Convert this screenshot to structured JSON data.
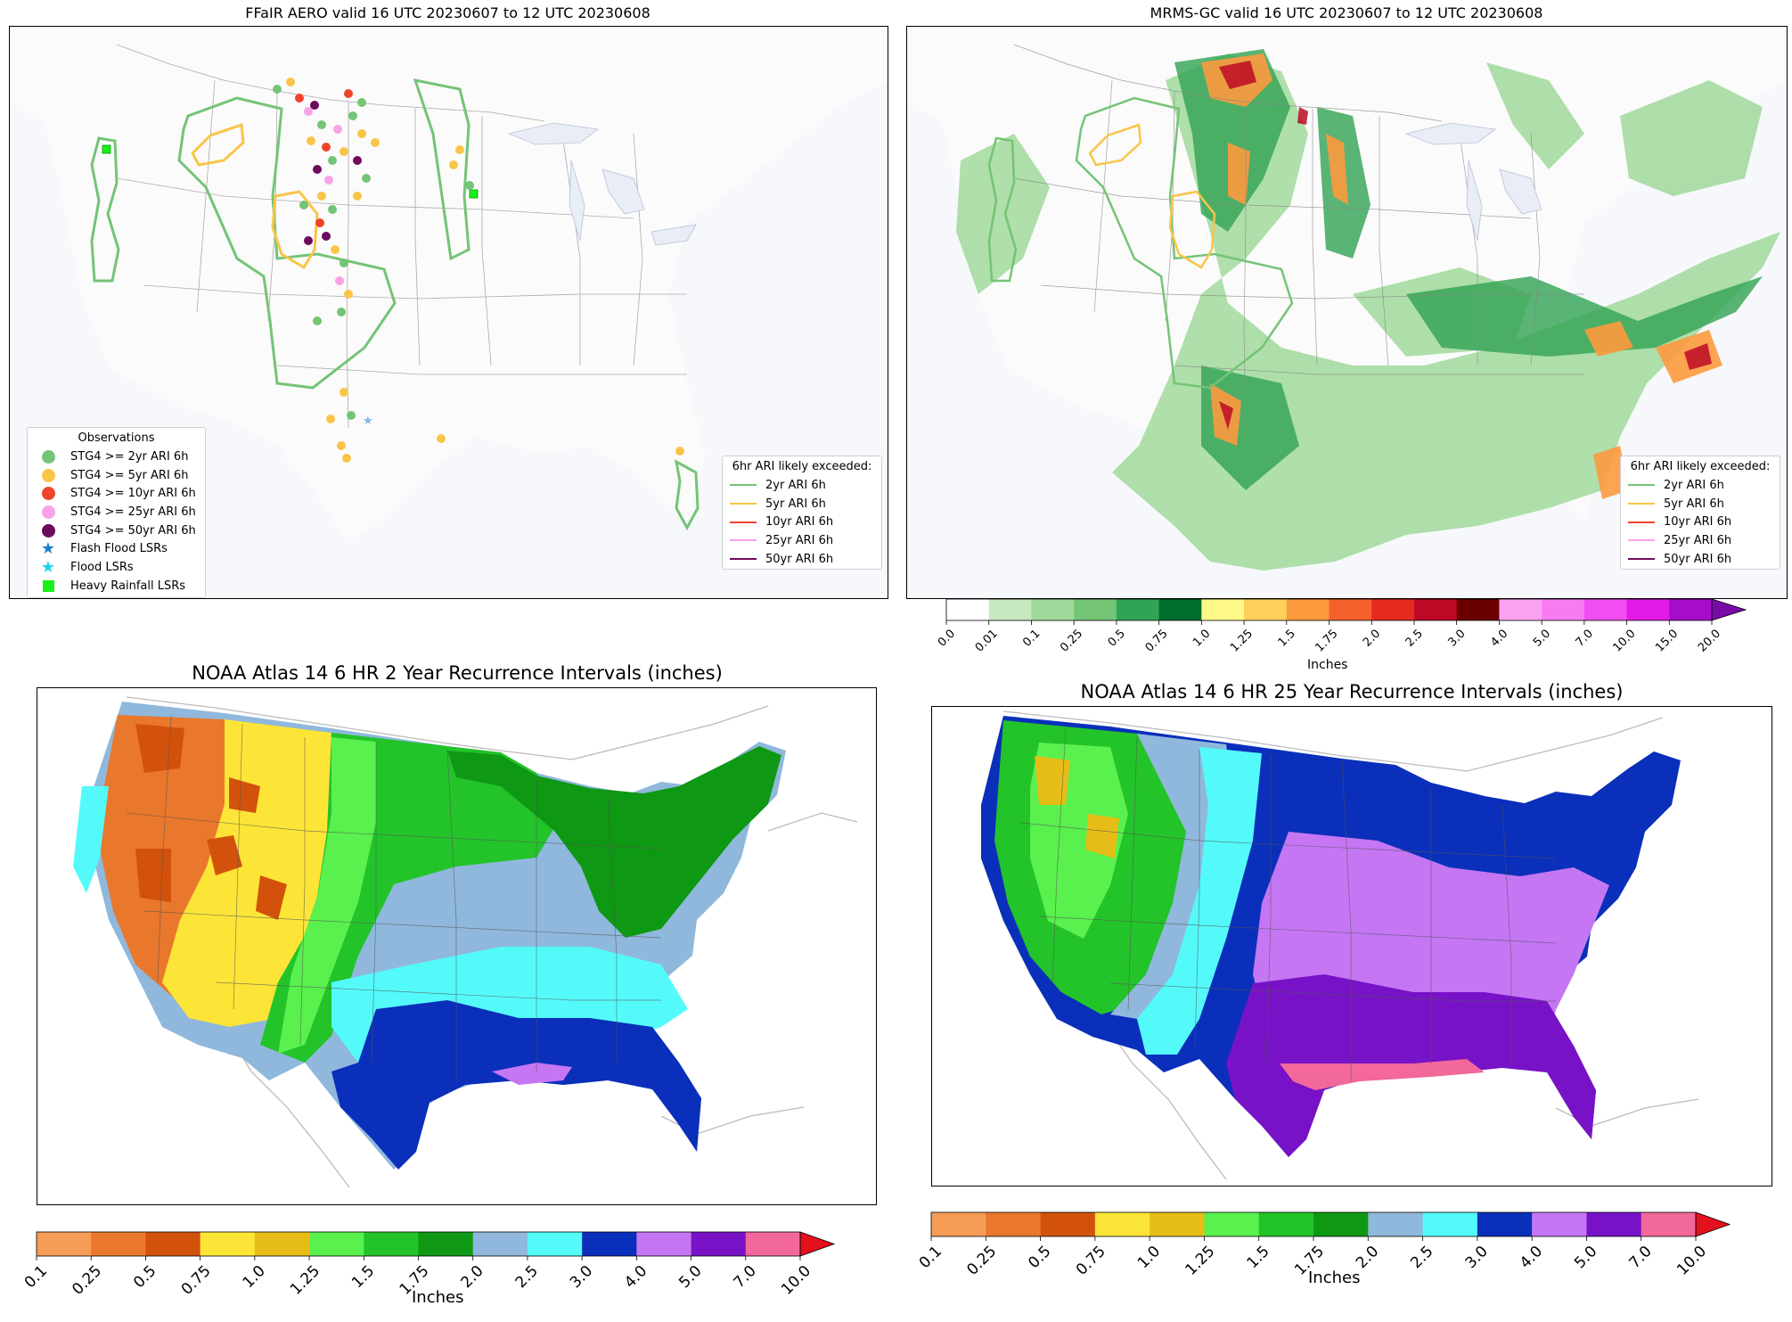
{
  "panels": {
    "ffair": {
      "title": "FFaIR AERO valid 16 UTC 20230607 to 12 UTC 20230608"
    },
    "mrms": {
      "title": "MRMS-GC valid 16 UTC 20230607 to 12 UTC 20230608"
    },
    "atlas2": {
      "title": "NOAA Atlas 14 6 HR 2 Year Recurrence Intervals (inches)"
    },
    "atlas25": {
      "title": "NOAA Atlas 14 6 HR 25 Year Recurrence Intervals (inches)"
    }
  },
  "obs_legend": {
    "title": "Observations",
    "items": [
      {
        "label": "STG4 >= 2yr ARI 6h",
        "symbol": "circle",
        "color": "#74c476"
      },
      {
        "label": "STG4 >= 5yr ARI 6h",
        "symbol": "circle",
        "color": "#f9c548"
      },
      {
        "label": "STG4 >= 10yr ARI 6h",
        "symbol": "circle",
        "color": "#f0442b"
      },
      {
        "label": "STG4 >= 25yr ARI 6h",
        "symbol": "circle",
        "color": "#f9a3e6"
      },
      {
        "label": "STG4 >= 50yr ARI 6h",
        "symbol": "circle",
        "color": "#6c0a5c"
      },
      {
        "label": "Flash Flood LSRs",
        "symbol": "star",
        "color": "#1f7fc4"
      },
      {
        "label": "Flood LSRs",
        "symbol": "star",
        "color": "#19d4e6"
      },
      {
        "label": "Heavy Rainfall LSRs",
        "symbol": "square",
        "color": "#19f019"
      }
    ]
  },
  "ari_legend": {
    "title": "6hr ARI likely exceeded:",
    "items": [
      {
        "label": "2yr ARI 6h",
        "color": "#74c476"
      },
      {
        "label": "5yr ARI 6h",
        "color": "#f9c548"
      },
      {
        "label": "10yr ARI 6h",
        "color": "#f0442b"
      },
      {
        "label": "25yr ARI 6h",
        "color": "#f9a3e6"
      },
      {
        "label": "50yr ARI 6h",
        "color": "#6c0a5c"
      }
    ]
  },
  "mrms_colorbar": {
    "label": "Inches",
    "ticks": [
      "0.0",
      "0.01",
      "0.1",
      "0.25",
      "0.5",
      "0.75",
      "1.0",
      "1.25",
      "1.5",
      "1.75",
      "2.0",
      "2.5",
      "3.0",
      "4.0",
      "5.0",
      "7.0",
      "10.0",
      "15.0",
      "20.0"
    ],
    "colors": [
      "#ffffff",
      "#c7e9c0",
      "#a1d99b",
      "#74c476",
      "#31a354",
      "#006d2c",
      "#fff98a",
      "#fdd05a",
      "#fd9a3e",
      "#f6602c",
      "#e52a20",
      "#bd0a26",
      "#6b0000",
      "#f9a2f0",
      "#f77cf0",
      "#f04ef0",
      "#e41ae6",
      "#a50dca"
    ],
    "extend_color": "#7a0aa8"
  },
  "atlas_colorbar": {
    "label": "Inches",
    "ticks": [
      "0.1",
      "0.25",
      "0.5",
      "0.75",
      "1.0",
      "1.25",
      "1.5",
      "1.75",
      "2.0",
      "2.5",
      "3.0",
      "4.0",
      "5.0",
      "7.0",
      "10.0"
    ],
    "colors": [
      "#f59c57",
      "#e9772c",
      "#d2520c",
      "#fde538",
      "#e6bd16",
      "#5af04e",
      "#23c32a",
      "#0f9813",
      "#8fb8dc",
      "#54fafa",
      "#0a2fba",
      "#c476f3",
      "#7812c6",
      "#f2689a"
    ],
    "extend_color": "#e4101c"
  }
}
